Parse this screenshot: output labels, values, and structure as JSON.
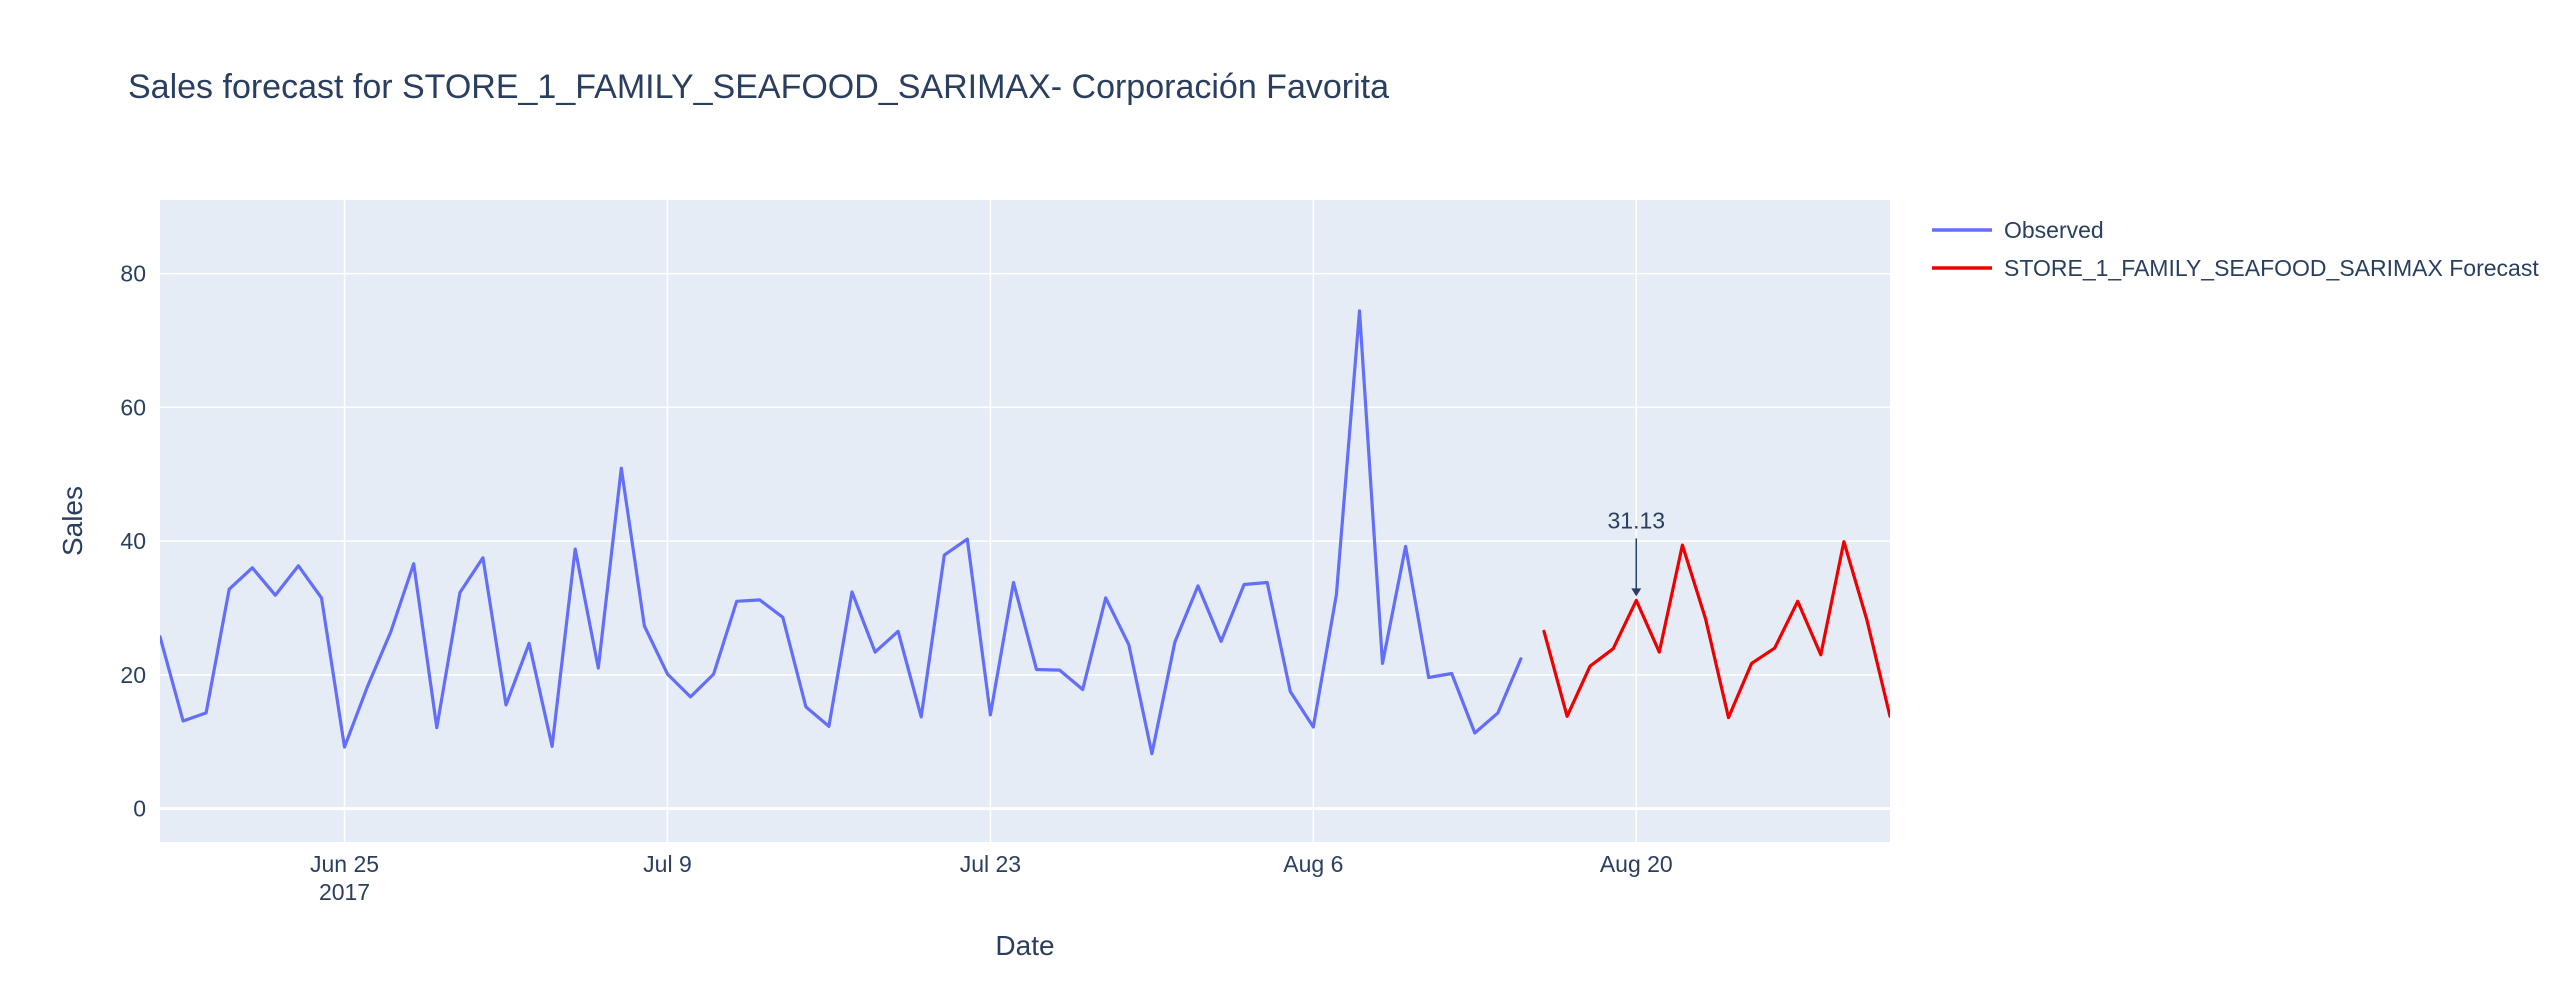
{
  "chart_data": {
    "type": "line",
    "title": "Sales forecast for STORE_1_FAMILY_SEAFOOD_SARIMAX- Corporación Favorita",
    "xlabel": "Date",
    "ylabel": "Sales",
    "x_range": [
      "2017-06-17",
      "2017-08-31"
    ],
    "ylim": [
      -5,
      91
    ],
    "x_ticks": [
      {
        "date": "2017-06-25",
        "label": "Jun 25",
        "sublabel": "2017"
      },
      {
        "date": "2017-07-09",
        "label": "Jul 9"
      },
      {
        "date": "2017-07-23",
        "label": "Jul 23"
      },
      {
        "date": "2017-08-06",
        "label": "Aug 6"
      },
      {
        "date": "2017-08-20",
        "label": "Aug 20"
      }
    ],
    "y_ticks": [
      0,
      20,
      40,
      60,
      80
    ],
    "grid": true,
    "legend_position": "top-right",
    "colors": {
      "plot_bg": "#e5ecf6",
      "grid": "#ffffff",
      "observed": "#636efa",
      "forecast": "#ee0000"
    },
    "series": [
      {
        "name": "Observed",
        "color": "#636efa",
        "x": [
          "2017-06-17",
          "2017-06-18",
          "2017-06-19",
          "2017-06-20",
          "2017-06-21",
          "2017-06-22",
          "2017-06-23",
          "2017-06-24",
          "2017-06-25",
          "2017-06-26",
          "2017-06-27",
          "2017-06-28",
          "2017-06-29",
          "2017-06-30",
          "2017-07-01",
          "2017-07-02",
          "2017-07-03",
          "2017-07-04",
          "2017-07-05",
          "2017-07-06",
          "2017-07-07",
          "2017-07-08",
          "2017-07-09",
          "2017-07-10",
          "2017-07-11",
          "2017-07-12",
          "2017-07-13",
          "2017-07-14",
          "2017-07-15",
          "2017-07-16",
          "2017-07-17",
          "2017-07-18",
          "2017-07-19",
          "2017-07-20",
          "2017-07-21",
          "2017-07-22",
          "2017-07-23",
          "2017-07-24",
          "2017-07-25",
          "2017-07-26",
          "2017-07-27",
          "2017-07-28",
          "2017-07-29",
          "2017-07-30",
          "2017-07-31",
          "2017-08-01",
          "2017-08-02",
          "2017-08-03",
          "2017-08-04",
          "2017-08-05",
          "2017-08-06",
          "2017-08-07",
          "2017-08-08",
          "2017-08-09",
          "2017-08-10",
          "2017-08-11",
          "2017-08-12",
          "2017-08-13",
          "2017-08-14",
          "2017-08-15"
        ],
        "values": [
          25.7,
          13.1,
          14.3,
          32.8,
          36.0,
          31.9,
          36.3,
          31.5,
          9.2,
          18.3,
          26.4,
          36.6,
          12.1,
          32.3,
          37.5,
          15.5,
          24.7,
          9.3,
          38.8,
          21.0,
          50.9,
          27.3,
          20.1,
          16.7,
          20.1,
          31.0,
          31.2,
          28.6,
          15.2,
          12.3,
          32.4,
          23.4,
          26.5,
          13.7,
          37.9,
          40.3,
          14.0,
          33.8,
          20.8,
          20.7,
          17.8,
          31.5,
          24.5,
          8.2,
          24.9,
          33.3,
          25.0,
          33.5,
          33.8,
          17.5,
          12.2,
          32.0,
          74.4,
          21.7,
          39.2,
          19.6,
          20.2,
          11.3,
          14.3,
          22.4
        ]
      },
      {
        "name": "STORE_1_FAMILY_SEAFOOD_SARIMAX Forecast",
        "color": "#ee0000",
        "x": [
          "2017-08-16",
          "2017-08-17",
          "2017-08-18",
          "2017-08-19",
          "2017-08-20",
          "2017-08-21",
          "2017-08-22",
          "2017-08-23",
          "2017-08-24",
          "2017-08-25",
          "2017-08-26",
          "2017-08-27",
          "2017-08-28",
          "2017-08-29",
          "2017-08-30",
          "2017-08-31"
        ],
        "values": [
          26.5,
          13.8,
          21.3,
          23.9,
          31.13,
          23.4,
          39.4,
          28.4,
          13.6,
          21.7,
          24.0,
          31.0,
          23.0,
          39.9,
          28.2,
          13.8
        ]
      }
    ],
    "annotations": [
      {
        "date": "2017-08-20",
        "value": 31.13,
        "text": "31.13"
      }
    ]
  }
}
